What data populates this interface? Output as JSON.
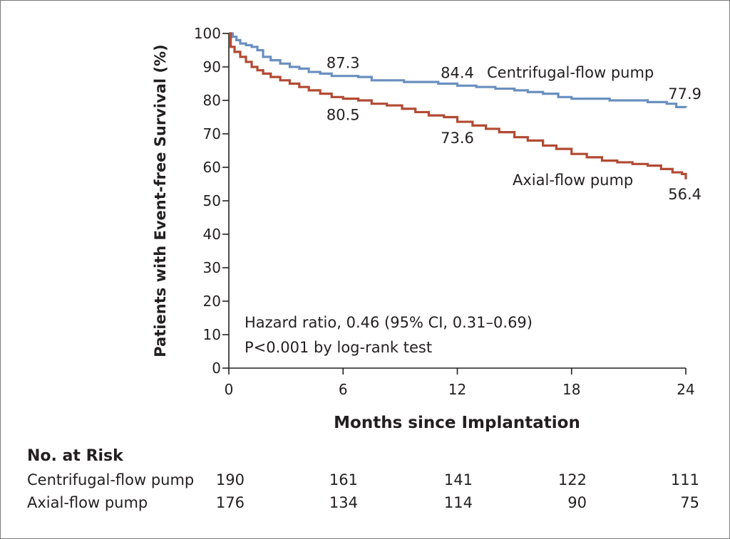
{
  "chart_data": {
    "type": "line",
    "title": "",
    "xlabel": "Months since Implantation",
    "ylabel": "Patients with Event-free Survival (%)",
    "xlim": [
      0,
      24
    ],
    "ylim": [
      0,
      100
    ],
    "xticks": [
      "0",
      "6",
      "12",
      "18",
      "24"
    ],
    "yticks": [
      "0",
      "10",
      "20",
      "30",
      "40",
      "50",
      "60",
      "70",
      "80",
      "90",
      "100"
    ],
    "grid": false,
    "series": [
      {
        "name": "Centrifugal-flow pump",
        "color": "#6a8fbf",
        "label": "Centrifugal-flow pump",
        "x": [
          0,
          0.2,
          0.4,
          0.6,
          0.9,
          1.2,
          1.5,
          1.8,
          2.2,
          2.7,
          3.2,
          3.7,
          4.2,
          4.8,
          5.4,
          6,
          6.8,
          7.5,
          8.3,
          9.2,
          10,
          11,
          12,
          13,
          14,
          15,
          15.7,
          16.5,
          17.3,
          18,
          19,
          20,
          21,
          22,
          23,
          23.5,
          24
        ],
        "y": [
          100,
          99,
          98,
          97,
          96.5,
          96,
          95,
          93,
          92,
          91,
          90,
          89.5,
          88.5,
          88,
          87.3,
          87.3,
          87,
          86,
          86,
          85.5,
          85.5,
          85,
          84.4,
          84,
          83.5,
          83,
          82.5,
          82,
          81,
          80.5,
          80.5,
          80,
          80,
          79.5,
          79,
          78,
          77.9
        ],
        "point_labels": [
          {
            "x": 6,
            "y": 87.3,
            "text": "87.3"
          },
          {
            "x": 12,
            "y": 84.4,
            "text": "84.4"
          },
          {
            "x": 24,
            "y": 77.9,
            "text": "77.9"
          }
        ]
      },
      {
        "name": "Axial-flow pump",
        "color": "#b24a33",
        "label": "Axial-flow pump",
        "x": [
          0,
          0.1,
          0.3,
          0.6,
          0.9,
          1.2,
          1.5,
          1.8,
          2.2,
          2.7,
          3.2,
          3.7,
          4.2,
          4.8,
          5.4,
          6,
          6.8,
          7.5,
          8.3,
          9.1,
          9.8,
          10.5,
          11.3,
          12,
          12.8,
          13.5,
          14.2,
          15,
          15.7,
          16.5,
          17.2,
          18,
          18.8,
          19.6,
          20.4,
          21.2,
          22,
          22.7,
          23.3,
          23.8,
          24
        ],
        "y": [
          100,
          96,
          94.5,
          93,
          91.5,
          90,
          89,
          88,
          87,
          86,
          85,
          84,
          83,
          82,
          81,
          80.5,
          80,
          79,
          78.5,
          77.5,
          76.5,
          75.5,
          75,
          73.6,
          72.5,
          71.5,
          70.5,
          69,
          68,
          66.5,
          65.5,
          64,
          63,
          62,
          61.5,
          61,
          60.5,
          59.5,
          58.5,
          58,
          56.4
        ],
        "point_labels": [
          {
            "x": 6,
            "y": 80.5,
            "text": "80.5"
          },
          {
            "x": 12,
            "y": 73.6,
            "text": "73.6"
          },
          {
            "x": 24,
            "y": 56.4,
            "text": "56.4"
          }
        ]
      }
    ],
    "annotations": [
      "Hazard ratio, 0.46 (95% CI, 0.31–0.69)",
      "P<0.001 by log-rank test"
    ]
  },
  "risk_table": {
    "title": "No. at Risk",
    "rows": [
      {
        "name": "Centrifugal-flow pump",
        "values": [
          "190",
          "161",
          "141",
          "122",
          "111"
        ]
      },
      {
        "name": "Axial-flow pump",
        "values": [
          "176",
          "134",
          "114",
          "90",
          "75"
        ]
      }
    ]
  }
}
